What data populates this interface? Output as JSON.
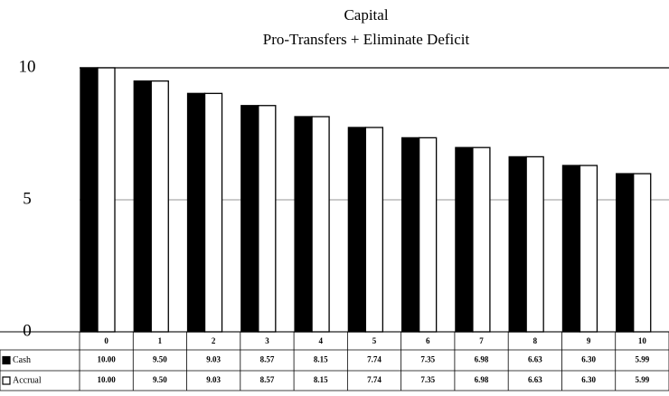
{
  "chart_data": {
    "type": "bar",
    "title": "Capital",
    "subtitle": "Pro-Transfers + Eliminate Deficit",
    "categories": [
      "0",
      "1",
      "2",
      "3",
      "4",
      "5",
      "6",
      "7",
      "8",
      "9",
      "10"
    ],
    "series": [
      {
        "name": "Cash",
        "color": "#000000",
        "values": [
          10,
          9.5,
          9.03,
          8.57,
          8.15,
          7.74,
          7.35,
          6.98,
          6.63,
          6.3,
          5.99
        ],
        "value_labels": [
          "10.00",
          "9.50",
          "9.03",
          "8.57",
          "8.15",
          "7.74",
          "7.35",
          "6.98",
          "6.63",
          "6.30",
          "5.99"
        ]
      },
      {
        "name": "Accrual",
        "color": "#ffffff",
        "values": [
          10,
          9.5,
          9.03,
          8.57,
          8.15,
          7.74,
          7.35,
          6.98,
          6.63,
          6.3,
          5.99
        ],
        "value_labels": [
          "10.00",
          "9.50",
          "9.03",
          "8.57",
          "8.15",
          "7.74",
          "7.35",
          "6.98",
          "6.63",
          "6.30",
          "5.99"
        ]
      }
    ],
    "ylim": [
      0,
      10
    ],
    "yticks": [
      0,
      5,
      10
    ],
    "grid": true,
    "data_table": true
  }
}
